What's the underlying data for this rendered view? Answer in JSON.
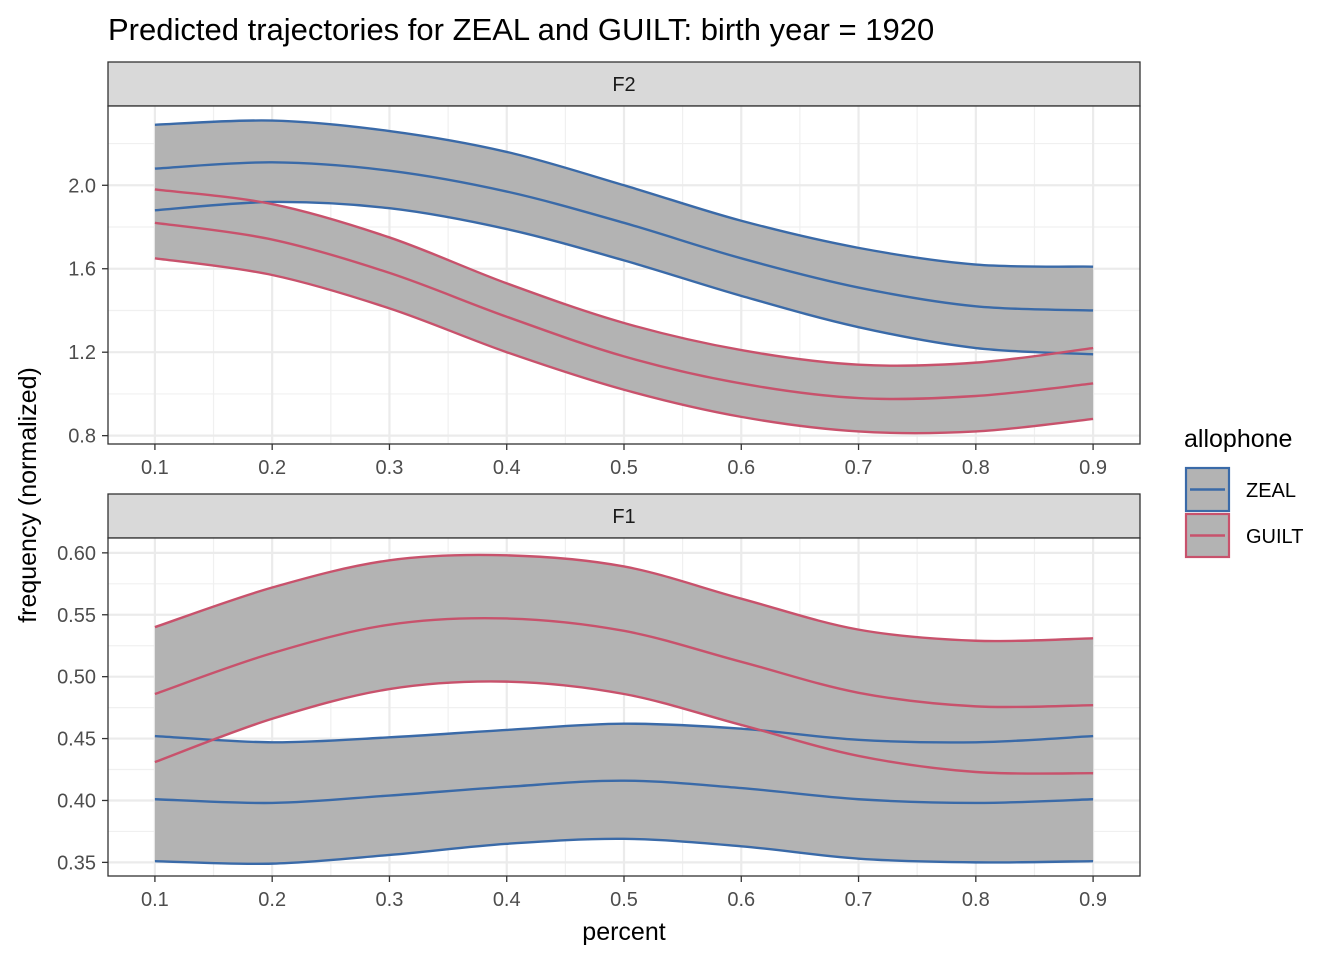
{
  "chart_data": {
    "type": "line",
    "title": "Predicted trajectories for ZEAL and GUILT: birth year = 1920",
    "xlabel": "percent",
    "ylabel": "frequency (normalized)",
    "x": [
      0.1,
      0.2,
      0.3,
      0.4,
      0.5,
      0.6,
      0.7,
      0.8,
      0.9
    ],
    "xlim": [
      0.06,
      0.94
    ],
    "x_ticks": [
      0.1,
      0.2,
      0.3,
      0.4,
      0.5,
      0.6,
      0.7,
      0.8,
      0.9
    ],
    "x_tick_labels": [
      "0.1",
      "0.2",
      "0.3",
      "0.4",
      "0.5",
      "0.6",
      "0.7",
      "0.8",
      "0.9"
    ],
    "grid": true,
    "legend": {
      "title": "allophone",
      "position": "right",
      "entries": [
        {
          "label": "ZEAL",
          "color": "#3a6aa8"
        },
        {
          "label": "GUILT",
          "color": "#c8526c"
        }
      ]
    },
    "band_fill": "#b3b3b3",
    "panels": [
      {
        "strip": "F2",
        "ylim": [
          0.76,
          2.38
        ],
        "y_ticks": [
          0.8,
          1.2,
          1.6,
          2.0
        ],
        "y_tick_labels": [
          "0.8",
          "1.2",
          "1.6",
          "2.0"
        ],
        "series": [
          {
            "name": "ZEAL",
            "fit": [
              2.08,
              2.11,
              2.07,
              1.97,
              1.82,
              1.65,
              1.51,
              1.42,
              1.4
            ],
            "lower": [
              1.88,
              1.92,
              1.89,
              1.79,
              1.64,
              1.47,
              1.32,
              1.22,
              1.19
            ],
            "upper": [
              2.29,
              2.31,
              2.26,
              2.16,
              2.0,
              1.83,
              1.7,
              1.62,
              1.61
            ]
          },
          {
            "name": "GUILT",
            "fit": [
              1.82,
              1.74,
              1.58,
              1.37,
              1.18,
              1.05,
              0.98,
              0.99,
              1.05
            ],
            "lower": [
              1.65,
              1.57,
              1.41,
              1.2,
              1.02,
              0.89,
              0.82,
              0.82,
              0.88
            ],
            "upper": [
              1.98,
              1.91,
              1.75,
              1.53,
              1.34,
              1.21,
              1.14,
              1.15,
              1.22
            ]
          }
        ]
      },
      {
        "strip": "F1",
        "ylim": [
          0.339,
          0.612
        ],
        "y_ticks": [
          0.35,
          0.4,
          0.45,
          0.5,
          0.55,
          0.6
        ],
        "y_tick_labels": [
          "0.35",
          "0.40",
          "0.45",
          "0.50",
          "0.55",
          "0.60"
        ],
        "series": [
          {
            "name": "ZEAL",
            "fit": [
              0.401,
              0.398,
              0.404,
              0.411,
              0.416,
              0.41,
              0.401,
              0.398,
              0.401
            ],
            "lower": [
              0.351,
              0.349,
              0.356,
              0.365,
              0.369,
              0.363,
              0.353,
              0.35,
              0.351
            ],
            "upper": [
              0.452,
              0.447,
              0.451,
              0.457,
              0.462,
              0.458,
              0.449,
              0.447,
              0.452
            ]
          },
          {
            "name": "GUILT",
            "fit": [
              0.486,
              0.519,
              0.542,
              0.547,
              0.537,
              0.512,
              0.487,
              0.476,
              0.477
            ],
            "lower": [
              0.431,
              0.466,
              0.49,
              0.496,
              0.486,
              0.461,
              0.436,
              0.423,
              0.422
            ],
            "upper": [
              0.54,
              0.572,
              0.594,
              0.598,
              0.589,
              0.563,
              0.538,
              0.529,
              0.531
            ]
          }
        ]
      }
    ]
  }
}
